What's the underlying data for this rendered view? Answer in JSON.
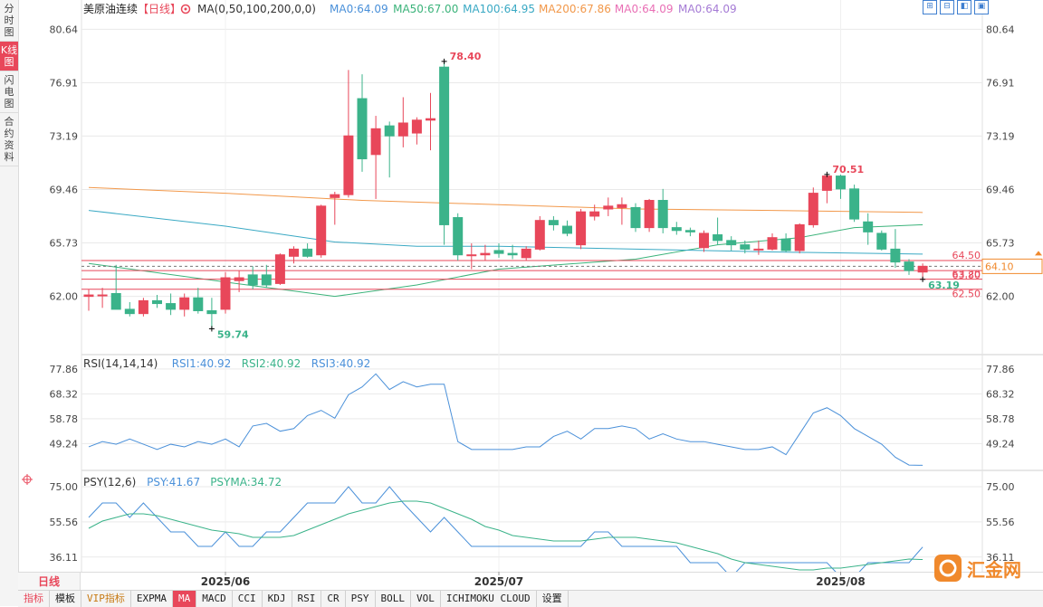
{
  "sidebar": {
    "tabs": [
      "分时图",
      "K线图",
      "闪电图",
      "合约资料"
    ],
    "active_index": 1
  },
  "header": {
    "symbol": "美原油连续",
    "period_tag": "【日线】",
    "settings_icon": "gear-icon",
    "legends": [
      {
        "text": "MA(0,50,100,200,0,0)",
        "color": "#333333"
      },
      {
        "text": "MA0:64.09",
        "color": "#4a90d9"
      },
      {
        "text": "MA50:67.00",
        "color": "#3bb37a"
      },
      {
        "text": "MA100:64.95",
        "color": "#3aa9c4"
      },
      {
        "text": "MA200:67.86",
        "color": "#f2984a"
      },
      {
        "text": "MA0:64.09",
        "color": "#e96fb5"
      },
      {
        "text": "MA0:64.09",
        "color": "#a57bd5"
      }
    ]
  },
  "top_tools": [
    "⊞",
    "⊟",
    "◧",
    "▣"
  ],
  "colors": {
    "up": "#e8475a",
    "down": "#3bb38a",
    "grid": "#e9e9e9",
    "ma50": "#3bb37a",
    "ma100": "#3aa9c4",
    "ma200": "#f2984a",
    "rsi": "#4a90d9",
    "psy": "#4a90d9",
    "psyma": "#3bb38a",
    "price_level": "#e8475a"
  },
  "chart_data": [
    {
      "type": "candlestick",
      "title": "美原油连续【日线】",
      "ylim": [
        59.2,
        81.8
      ],
      "y_ticks": [
        "80.64",
        "76.91",
        "73.19",
        "69.46",
        "65.73",
        "62.00"
      ],
      "x_labels": [
        "2025/06",
        "2025/07",
        "2025/08"
      ],
      "x_label_index": [
        10,
        30,
        55
      ],
      "candles": [
        {
          "o": 62.0,
          "h": 62.5,
          "l": 61.0,
          "c": 62.1
        },
        {
          "o": 62.1,
          "h": 62.6,
          "l": 61.2,
          "c": 62.1
        },
        {
          "o": 62.2,
          "h": 64.2,
          "l": 61.1,
          "c": 61.1
        },
        {
          "o": 61.1,
          "h": 61.6,
          "l": 60.6,
          "c": 60.8
        },
        {
          "o": 60.8,
          "h": 61.9,
          "l": 60.6,
          "c": 61.7
        },
        {
          "o": 61.7,
          "h": 62.1,
          "l": 61.2,
          "c": 61.5
        },
        {
          "o": 61.5,
          "h": 62.2,
          "l": 60.7,
          "c": 61.1
        },
        {
          "o": 61.1,
          "h": 62.2,
          "l": 60.6,
          "c": 61.9
        },
        {
          "o": 61.9,
          "h": 62.6,
          "l": 60.8,
          "c": 61.0
        },
        {
          "o": 61.0,
          "h": 61.9,
          "l": 59.74,
          "c": 60.8
        },
        {
          "o": 61.1,
          "h": 63.7,
          "l": 60.8,
          "c": 63.3
        },
        {
          "o": 63.1,
          "h": 63.8,
          "l": 62.3,
          "c": 63.3
        },
        {
          "o": 63.5,
          "h": 64.1,
          "l": 62.5,
          "c": 62.8
        },
        {
          "o": 63.5,
          "h": 64.2,
          "l": 62.6,
          "c": 62.8
        },
        {
          "o": 62.9,
          "h": 65.0,
          "l": 62.8,
          "c": 64.9
        },
        {
          "o": 64.8,
          "h": 65.5,
          "l": 64.3,
          "c": 65.3
        },
        {
          "o": 65.3,
          "h": 65.7,
          "l": 64.7,
          "c": 64.8
        },
        {
          "o": 64.9,
          "h": 68.4,
          "l": 64.7,
          "c": 68.3
        },
        {
          "o": 68.9,
          "h": 69.3,
          "l": 67.0,
          "c": 69.1
        },
        {
          "o": 69.1,
          "h": 77.8,
          "l": 68.9,
          "c": 73.2
        },
        {
          "o": 75.8,
          "h": 77.5,
          "l": 70.7,
          "c": 71.6
        },
        {
          "o": 71.9,
          "h": 74.6,
          "l": 68.8,
          "c": 73.7
        },
        {
          "o": 73.9,
          "h": 74.2,
          "l": 70.3,
          "c": 73.2
        },
        {
          "o": 73.2,
          "h": 75.9,
          "l": 72.4,
          "c": 74.1
        },
        {
          "o": 73.4,
          "h": 74.5,
          "l": 72.6,
          "c": 74.3
        },
        {
          "o": 74.3,
          "h": 76.2,
          "l": 72.2,
          "c": 74.4
        },
        {
          "o": 78.0,
          "h": 78.4,
          "l": 65.6,
          "c": 67.0
        },
        {
          "o": 67.5,
          "h": 67.8,
          "l": 64.5,
          "c": 64.9
        },
        {
          "o": 64.9,
          "h": 65.7,
          "l": 63.9,
          "c": 64.9
        },
        {
          "o": 64.9,
          "h": 65.6,
          "l": 64.5,
          "c": 65.0
        },
        {
          "o": 65.2,
          "h": 65.7,
          "l": 64.7,
          "c": 65.0
        },
        {
          "o": 65.0,
          "h": 65.6,
          "l": 64.6,
          "c": 64.9
        },
        {
          "o": 64.7,
          "h": 65.5,
          "l": 64.5,
          "c": 65.3
        },
        {
          "o": 65.3,
          "h": 67.6,
          "l": 65.2,
          "c": 67.3
        },
        {
          "o": 67.3,
          "h": 67.6,
          "l": 66.6,
          "c": 67.0
        },
        {
          "o": 66.9,
          "h": 67.3,
          "l": 66.2,
          "c": 66.4
        },
        {
          "o": 65.6,
          "h": 68.1,
          "l": 65.3,
          "c": 67.9
        },
        {
          "o": 67.6,
          "h": 68.4,
          "l": 67.3,
          "c": 67.9
        },
        {
          "o": 68.1,
          "h": 68.9,
          "l": 67.6,
          "c": 68.3
        },
        {
          "o": 68.2,
          "h": 68.9,
          "l": 67.0,
          "c": 68.4
        },
        {
          "o": 68.2,
          "h": 68.5,
          "l": 66.5,
          "c": 66.8
        },
        {
          "o": 66.8,
          "h": 68.8,
          "l": 66.5,
          "c": 68.7
        },
        {
          "o": 68.7,
          "h": 69.5,
          "l": 66.4,
          "c": 66.8
        },
        {
          "o": 66.8,
          "h": 67.2,
          "l": 66.3,
          "c": 66.6
        },
        {
          "o": 66.6,
          "h": 66.8,
          "l": 66.2,
          "c": 66.5
        },
        {
          "o": 65.4,
          "h": 66.6,
          "l": 65.1,
          "c": 66.4
        },
        {
          "o": 66.3,
          "h": 67.5,
          "l": 65.6,
          "c": 65.9
        },
        {
          "o": 65.9,
          "h": 66.2,
          "l": 65.2,
          "c": 65.6
        },
        {
          "o": 65.6,
          "h": 65.9,
          "l": 65.0,
          "c": 65.3
        },
        {
          "o": 65.3,
          "h": 65.9,
          "l": 64.9,
          "c": 65.3
        },
        {
          "o": 65.3,
          "h": 66.4,
          "l": 65.2,
          "c": 66.1
        },
        {
          "o": 66.0,
          "h": 66.4,
          "l": 65.1,
          "c": 65.2
        },
        {
          "o": 65.2,
          "h": 67.1,
          "l": 65.0,
          "c": 67.0
        },
        {
          "o": 67.0,
          "h": 69.6,
          "l": 66.8,
          "c": 69.2
        },
        {
          "o": 69.4,
          "h": 70.51,
          "l": 68.5,
          "c": 70.4
        },
        {
          "o": 70.4,
          "h": 70.5,
          "l": 68.8,
          "c": 69.5
        },
        {
          "o": 69.5,
          "h": 69.8,
          "l": 67.2,
          "c": 67.4
        },
        {
          "o": 67.2,
          "h": 67.8,
          "l": 65.6,
          "c": 66.5
        },
        {
          "o": 66.4,
          "h": 66.6,
          "l": 65.2,
          "c": 65.3
        },
        {
          "o": 65.3,
          "h": 66.7,
          "l": 64.0,
          "c": 64.4
        },
        {
          "o": 64.4,
          "h": 64.6,
          "l": 63.5,
          "c": 63.8
        },
        {
          "o": 63.7,
          "h": 64.3,
          "l": 63.19,
          "c": 64.1
        }
      ],
      "series": [
        {
          "name": "MA50",
          "values": [
            [
              0,
              64.3
            ],
            [
              10,
              63.0
            ],
            [
              18,
              62.0
            ],
            [
              24,
              62.8
            ],
            [
              30,
              63.9
            ],
            [
              40,
              64.6
            ],
            [
              46,
              65.6
            ],
            [
              52,
              66.1
            ],
            [
              56,
              66.8
            ],
            [
              61,
              67.0
            ]
          ]
        },
        {
          "name": "MA100",
          "values": [
            [
              0,
              68.0
            ],
            [
              10,
              66.9
            ],
            [
              18,
              65.8
            ],
            [
              24,
              65.5
            ],
            [
              30,
              65.5
            ],
            [
              40,
              65.3
            ],
            [
              50,
              65.1
            ],
            [
              61,
              64.95
            ]
          ]
        },
        {
          "name": "MA200",
          "values": [
            [
              0,
              69.6
            ],
            [
              10,
              69.2
            ],
            [
              20,
              68.7
            ],
            [
              30,
              68.4
            ],
            [
              40,
              68.1
            ],
            [
              50,
              68.0
            ],
            [
              61,
              67.86
            ]
          ]
        }
      ],
      "price_levels": [
        "64.50",
        "63.80",
        "63.20",
        "62.50"
      ],
      "price_level_values": [
        64.5,
        63.8,
        63.2,
        62.5
      ],
      "annotations": [
        {
          "text": "78.40",
          "x": 26,
          "y": 78.4,
          "color": "#e8475a"
        },
        {
          "text": "59.74",
          "x": 9,
          "y": 59.74,
          "color": "#3bb38a"
        },
        {
          "text": "70.51",
          "x": 54,
          "y": 70.51,
          "color": "#e8475a"
        },
        {
          "text": "63.19",
          "x": 61,
          "y": 63.19,
          "color": "#3bb38a"
        }
      ],
      "current_price": "64.10",
      "current_price_value": 64.1
    },
    {
      "type": "line",
      "title": "RSI(14,14,14)",
      "legends": [
        {
          "text": "RSI(14,14,14)",
          "color": "#333333"
        },
        {
          "text": "RSI1:40.92",
          "color": "#4a90d9"
        },
        {
          "text": "RSI2:40.92",
          "color": "#3bb38a"
        },
        {
          "text": "RSI3:40.92",
          "color": "#4a90d9"
        }
      ],
      "ylim": [
        40.0,
        82.0
      ],
      "y_ticks": [
        "77.86",
        "68.32",
        "58.78",
        "49.24"
      ],
      "series": [
        {
          "name": "RSI1",
          "values": [
            48,
            50,
            49,
            51,
            49,
            47,
            49,
            48,
            50,
            49,
            51,
            48,
            56,
            57,
            54,
            55,
            60,
            62,
            59,
            68,
            71,
            76,
            70,
            73,
            71,
            72,
            72,
            50,
            47,
            47,
            47,
            47,
            48,
            48,
            52,
            54,
            51,
            55,
            55,
            56,
            55,
            51,
            53,
            51,
            50,
            50,
            49,
            48,
            47,
            47,
            48,
            45,
            53,
            61,
            63,
            60,
            55,
            52,
            49,
            44,
            41,
            40.92
          ]
        }
      ]
    },
    {
      "type": "line",
      "title": "PSY(12,6)",
      "legends": [
        {
          "text": "PSY(12,6)",
          "color": "#333333"
        },
        {
          "text": "PSY:41.67",
          "color": "#4a90d9"
        },
        {
          "text": "PSYMA:34.72",
          "color": "#3bb38a"
        }
      ],
      "ylim": [
        28.0,
        80.0
      ],
      "y_ticks": [
        "75.00",
        "55.56",
        "36.11"
      ],
      "series": [
        {
          "name": "PSY",
          "values": [
            58,
            66,
            66,
            58,
            66,
            58,
            50,
            50,
            42,
            42,
            50,
            42,
            42,
            50,
            50,
            58,
            66,
            66,
            66,
            75,
            66,
            66,
            75,
            66,
            58,
            50,
            58,
            50,
            42,
            42,
            42,
            42,
            42,
            42,
            42,
            42,
            42,
            50,
            50,
            42,
            42,
            42,
            42,
            42,
            33,
            33,
            33,
            25,
            33,
            33,
            33,
            33,
            33,
            33,
            33,
            25,
            25,
            33,
            33,
            33,
            33,
            41.67
          ]
        },
        {
          "name": "PSYMA",
          "values": [
            52,
            56,
            58,
            60,
            60,
            59,
            57,
            55,
            53,
            51,
            50,
            49,
            47,
            47,
            47,
            48,
            51,
            54,
            57,
            60,
            62,
            64,
            66,
            67,
            67,
            66,
            63,
            60,
            57,
            53,
            51,
            48,
            47,
            46,
            45,
            45,
            45,
            46,
            47,
            47,
            47,
            46,
            45,
            44,
            42,
            40,
            38,
            35,
            33,
            32,
            31,
            30,
            29,
            29,
            30,
            30,
            31,
            32,
            33,
            34,
            35,
            34.72
          ]
        }
      ]
    }
  ],
  "bottom": {
    "period_tab": "日线",
    "tools": [
      "指标",
      "模板",
      "VIP指标",
      "EXPMA",
      "MA",
      "MACD",
      "CCI",
      "KDJ",
      "RSI",
      "CR",
      "PSY",
      "BOLL",
      "VOL",
      "ICHIMOKU CLOUD",
      "设置"
    ],
    "active_tool": "MA",
    "vip_tool": "VIP指标"
  },
  "brand": {
    "name": "汇金网",
    "icon": "brand-logo-icon"
  }
}
